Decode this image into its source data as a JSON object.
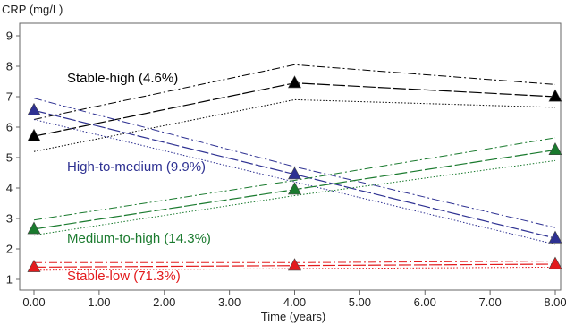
{
  "chart_data": {
    "type": "line",
    "ylabel": "CRP (mg/L)",
    "xlabel": "Time (years)",
    "xlim": [
      0,
      8
    ],
    "ylim": [
      1,
      9
    ],
    "xticks": [
      "0.00",
      "1.00",
      "2.00",
      "3.00",
      "4.00",
      "5.00",
      "6.00",
      "7.00",
      "8.00"
    ],
    "yticks": [
      "1",
      "2",
      "3",
      "4",
      "5",
      "6",
      "7",
      "8",
      "9"
    ],
    "grid": false,
    "x": [
      0,
      4,
      8
    ],
    "series": [
      {
        "name": "Stable-high (4.6%)",
        "color": "#000000",
        "values": [
          5.7,
          7.45,
          7.0
        ],
        "upper": [
          6.25,
          8.05,
          7.4
        ],
        "lower": [
          5.2,
          6.9,
          6.65
        ]
      },
      {
        "name": "High-to-medium (9.9%)",
        "color": "#2e3192",
        "values": [
          6.55,
          4.45,
          2.35
        ],
        "upper": [
          6.95,
          4.7,
          2.7
        ],
        "lower": [
          6.25,
          4.2,
          2.15
        ]
      },
      {
        "name": "Medium-to-high (14.3%)",
        "color": "#1a7a2e",
        "values": [
          2.65,
          3.95,
          5.25
        ],
        "upper": [
          2.95,
          4.25,
          5.65
        ],
        "lower": [
          2.45,
          3.75,
          4.9
        ]
      },
      {
        "name": "Stable-low (71.3%)",
        "color": "#e31a1c",
        "values": [
          1.4,
          1.45,
          1.5
        ],
        "upper": [
          1.55,
          1.55,
          1.6
        ],
        "lower": [
          1.3,
          1.35,
          1.4
        ]
      }
    ]
  }
}
